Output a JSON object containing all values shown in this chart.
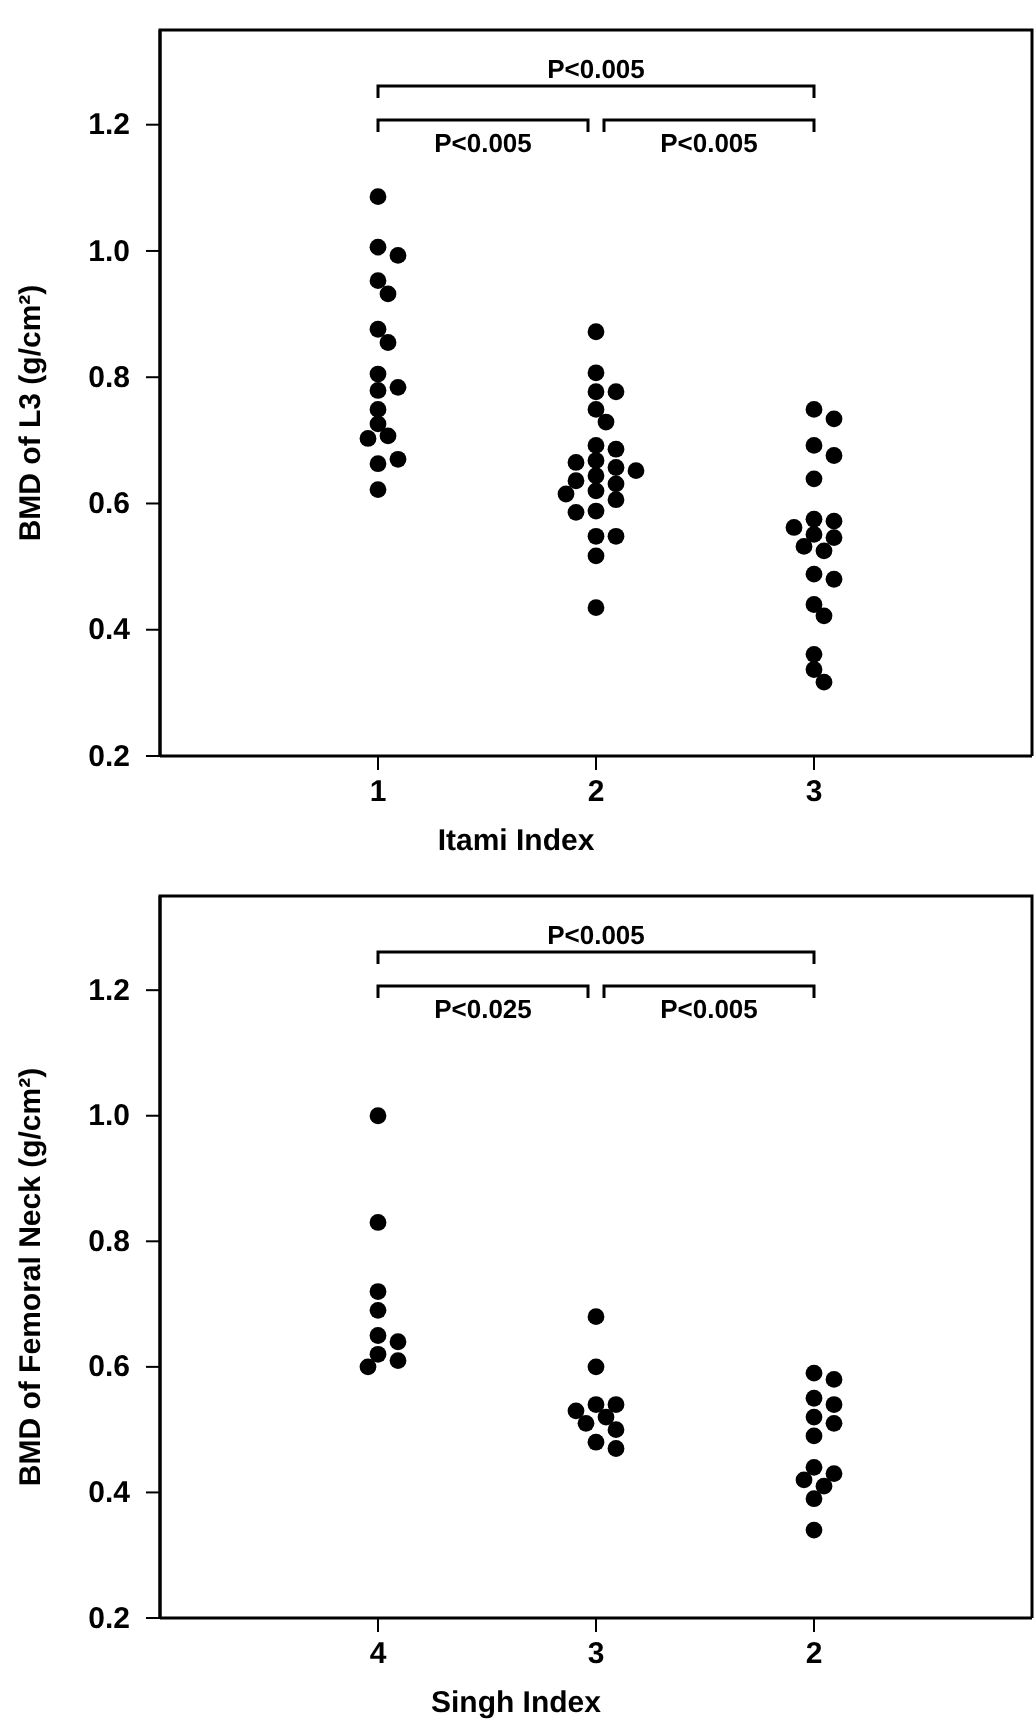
{
  "chart_data": [
    {
      "type": "scatter",
      "xlabel": "Itami Index",
      "ylabel": "BMD of L3 (g/cm²)",
      "categories": [
        "1",
        "2",
        "3"
      ],
      "ylim": [
        0.2,
        1.35
      ],
      "yticks": [
        0.2,
        0.4,
        0.6,
        0.8,
        {
          "value": 1.0,
          "label": "1.0"
        },
        1.2
      ],
      "grid": false,
      "marker": "circle",
      "annotations": [
        "P<0.005",
        "P<0.005",
        "P<0.005"
      ],
      "series": [
        {
          "color": "#000000",
          "x": [
            "1",
            "1",
            "1",
            "1",
            "1",
            "1",
            "1",
            "1",
            "1",
            "1",
            "1",
            "1",
            "1",
            "1",
            "1",
            "1",
            "1"
          ],
          "values": [
            1.086,
            1.006,
            0.993,
            0.953,
            0.932,
            0.876,
            0.855,
            0.805,
            0.779,
            0.784,
            0.749,
            0.726,
            0.707,
            0.703,
            0.663,
            0.67,
            0.622
          ]
        },
        {
          "color": "#000000",
          "x": [
            "2",
            "2",
            "2",
            "2",
            "2",
            "2",
            "2",
            "2",
            "2",
            "2",
            "2",
            "2",
            "2",
            "2",
            "2",
            "2",
            "2",
            "2",
            "2",
            "2",
            "2",
            "2",
            "2",
            "2"
          ],
          "values": [
            0.872,
            0.807,
            0.777,
            0.777,
            0.749,
            0.729,
            0.692,
            0.686,
            0.668,
            0.665,
            0.657,
            0.652,
            0.644,
            0.636,
            0.631,
            0.62,
            0.615,
            0.606,
            0.588,
            0.586,
            0.548,
            0.548,
            0.517,
            0.435
          ]
        },
        {
          "color": "#000000",
          "x": [
            "3",
            "3",
            "3",
            "3",
            "3",
            "3",
            "3",
            "3",
            "3",
            "3",
            "3",
            "3",
            "3",
            "3",
            "3",
            "3",
            "3",
            "3",
            "3"
          ],
          "values": [
            0.749,
            0.734,
            0.692,
            0.676,
            0.639,
            0.575,
            0.572,
            0.562,
            0.551,
            0.546,
            0.532,
            0.525,
            0.488,
            0.48,
            0.44,
            0.422,
            0.361,
            0.337,
            0.317
          ]
        }
      ]
    },
    {
      "type": "scatter",
      "xlabel": "Singh Index",
      "ylabel": "BMD of Femoral Neck (g/cm²)",
      "categories": [
        "4",
        "3",
        "2"
      ],
      "ylim": [
        0.2,
        1.35
      ],
      "yticks": [
        0.2,
        0.4,
        0.6,
        0.8,
        {
          "value": 1.0,
          "label": "1.0"
        },
        1.2
      ],
      "grid": false,
      "marker": "circle",
      "annotations": [
        "P<0.005",
        "P<0.025",
        "P<0.005"
      ],
      "series": [
        {
          "color": "#000000",
          "x": [
            "4",
            "4",
            "4",
            "4",
            "4",
            "4",
            "4",
            "4",
            "4"
          ],
          "values": [
            1.0,
            0.83,
            0.72,
            0.69,
            0.65,
            0.64,
            0.62,
            0.61,
            0.6
          ]
        },
        {
          "color": "#000000",
          "x": [
            "3",
            "3",
            "3",
            "3",
            "3",
            "3",
            "3",
            "3",
            "3",
            "3"
          ],
          "values": [
            0.68,
            0.6,
            0.54,
            0.54,
            0.53,
            0.52,
            0.51,
            0.5,
            0.48,
            0.47
          ]
        },
        {
          "color": "#000000",
          "x": [
            "2",
            "2",
            "2",
            "2",
            "2",
            "2",
            "2",
            "2",
            "2",
            "2",
            "2",
            "2",
            "2"
          ],
          "values": [
            0.59,
            0.58,
            0.55,
            0.54,
            0.52,
            0.51,
            0.49,
            0.44,
            0.43,
            0.42,
            0.41,
            0.39,
            0.34
          ]
        }
      ]
    }
  ]
}
